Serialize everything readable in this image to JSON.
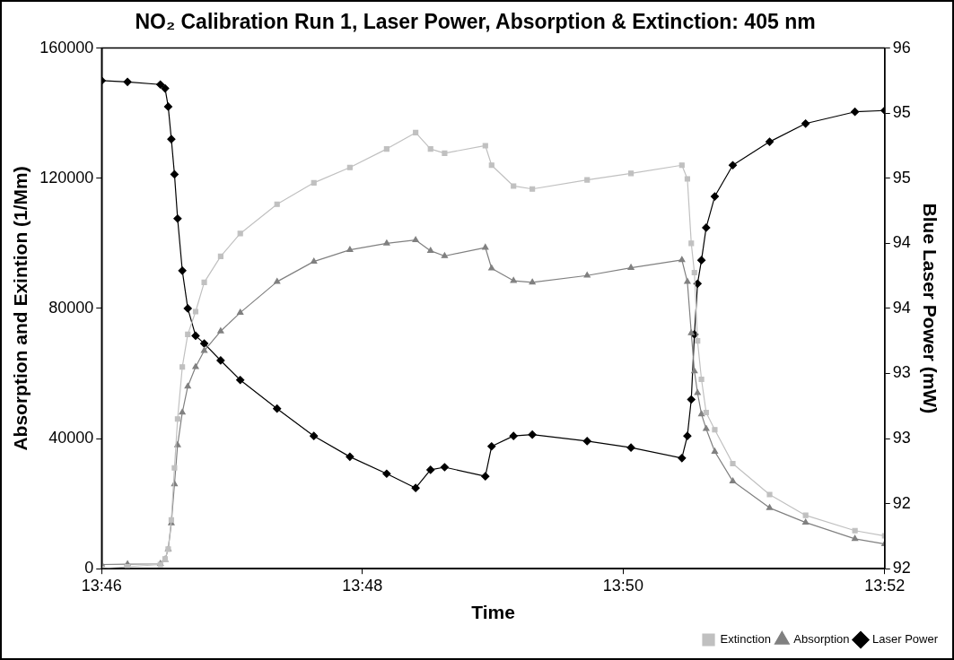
{
  "chart_data": {
    "type": "line",
    "title": "NO₂ Calibration Run 1, Laser Power, Absorption & Extinction: 405 nm",
    "xlabel": "Time",
    "ylabel": "Absorption and Exintion (1/Mm)",
    "y2label": "Blue Laser Power (mW)",
    "x": [
      13.7667,
      13.77,
      13.7742,
      13.7748,
      13.7752,
      13.7756,
      13.776,
      13.7764,
      13.777,
      13.7777,
      13.7787,
      13.7798,
      13.7819,
      13.7844,
      13.7891,
      13.7938,
      13.7984,
      13.8031,
      13.8068,
      13.8087,
      13.8105,
      13.8157,
      13.8165,
      13.8193,
      13.8217,
      13.8287,
      13.8343,
      13.8408,
      13.8415,
      13.842,
      13.8424,
      13.8428,
      13.8433,
      13.8439,
      13.845,
      13.8473,
      13.852,
      13.8566,
      13.8629,
      13.8667
    ],
    "series": [
      {
        "name": "Extinction",
        "color": "#c0c0c0",
        "marker": "square",
        "values": [
          0,
          600,
          1300,
          3000,
          6000,
          15000,
          31000,
          46000,
          62000,
          72000,
          79000,
          88000,
          96000,
          103000,
          112000,
          118600,
          123300,
          129000,
          134000,
          129000,
          127700,
          130000,
          124000,
          117600,
          116700,
          119500,
          121500,
          124000,
          119800,
          100000,
          91000,
          70000,
          58200,
          48000,
          42700,
          32300,
          22800,
          16400,
          11700,
          10100
        ]
      },
      {
        "name": "Absorption",
        "color": "#808080",
        "marker": "triangle",
        "values": [
          1300,
          1400,
          1500,
          2800,
          6000,
          14000,
          26000,
          38000,
          48000,
          56000,
          62000,
          67000,
          73000,
          78700,
          88200,
          94400,
          98000,
          100000,
          101000,
          97700,
          96100,
          98700,
          92300,
          88500,
          88000,
          90100,
          92500,
          94900,
          88200,
          72400,
          60700,
          54000,
          47500,
          43000,
          36000,
          26900,
          18700,
          14200,
          9200,
          7600
        ]
      },
      {
        "name": "Laser Power",
        "color": "#000000",
        "marker": "diamond",
        "axis": "y2",
        "values": [
          95.75,
          95.74,
          95.72,
          95.69,
          95.55,
          95.3,
          95.03,
          94.69,
          94.29,
          94.0,
          93.79,
          93.73,
          93.6,
          93.45,
          93.23,
          93.02,
          92.86,
          92.73,
          92.62,
          92.76,
          92.78,
          92.71,
          92.94,
          93.02,
          93.03,
          92.98,
          92.93,
          92.85,
          93.02,
          93.3,
          93.8,
          94.19,
          94.37,
          94.62,
          94.86,
          95.1,
          95.28,
          95.42,
          95.51,
          95.52
        ]
      }
    ],
    "xlim": [
      13.7667,
      13.8667
    ],
    "xticks": [
      {
        "value": 13.7667,
        "label": "13:46"
      },
      {
        "value": 13.8,
        "label": "13:48"
      },
      {
        "value": 13.8333,
        "label": "13:50"
      },
      {
        "value": 13.8667,
        "label": "13:52"
      }
    ],
    "ylim": [
      0,
      160000
    ],
    "yticks": [
      0,
      40000,
      80000,
      120000,
      160000
    ],
    "y2lim": [
      92,
      96
    ],
    "y2ticks": [
      92,
      {
        "value": 92.5,
        "label": "92"
      },
      93,
      {
        "value": 93.5,
        "label": "93"
      },
      94,
      {
        "value": 94.5,
        "label": "94"
      },
      95,
      {
        "value": 95.5,
        "label": "95"
      },
      96
    ],
    "grid": false,
    "legend": "bottom right",
    "line_style": "solid"
  }
}
